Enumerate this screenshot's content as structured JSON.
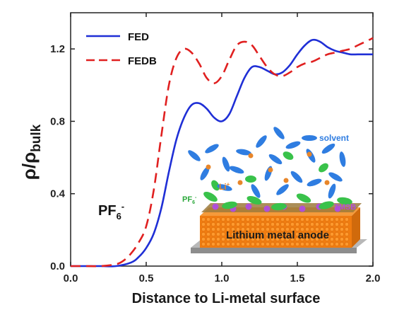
{
  "chart_data": {
    "type": "line",
    "title": "",
    "xlabel": "Distance to Li-metal surface",
    "ylabel_main": "ρ/ρ",
    "ylabel_sub": "bulk",
    "xlim": [
      0.0,
      2.0
    ],
    "ylim": [
      0.0,
      1.4
    ],
    "xticks": [
      "0.0",
      "0.5",
      "1.0",
      "1.5",
      "2.0"
    ],
    "yticks": [
      "0.0",
      "0.4",
      "0.8",
      "1.2"
    ],
    "xtick_values": [
      0.0,
      0.5,
      1.0,
      1.5,
      2.0
    ],
    "ytick_values": [
      0.0,
      0.4,
      0.8,
      1.2
    ],
    "legend_position": "top-left",
    "grid": false,
    "annotation_main": "PF",
    "annotation_sub": "6",
    "annotation_sup": "-",
    "series": [
      {
        "name": "FED",
        "color": "#1f2fd6",
        "style": "solid",
        "x": [
          0.0,
          0.1,
          0.2,
          0.3,
          0.4,
          0.45,
          0.5,
          0.55,
          0.6,
          0.65,
          0.7,
          0.75,
          0.8,
          0.85,
          0.9,
          0.95,
          1.0,
          1.05,
          1.1,
          1.15,
          1.2,
          1.25,
          1.3,
          1.35,
          1.4,
          1.45,
          1.5,
          1.55,
          1.6,
          1.65,
          1.7,
          1.75,
          1.8,
          1.85,
          1.9,
          1.95,
          2.0
        ],
        "y": [
          0.0,
          0.0,
          0.0,
          0.0,
          0.02,
          0.05,
          0.1,
          0.18,
          0.32,
          0.52,
          0.7,
          0.82,
          0.89,
          0.9,
          0.87,
          0.82,
          0.8,
          0.84,
          0.94,
          1.04,
          1.1,
          1.1,
          1.08,
          1.06,
          1.07,
          1.11,
          1.17,
          1.22,
          1.25,
          1.24,
          1.21,
          1.19,
          1.18,
          1.17,
          1.17,
          1.17,
          1.17
        ]
      },
      {
        "name": "FEDB",
        "color": "#e02020",
        "style": "dashed",
        "x": [
          0.0,
          0.1,
          0.2,
          0.3,
          0.35,
          0.4,
          0.45,
          0.5,
          0.55,
          0.6,
          0.65,
          0.7,
          0.75,
          0.8,
          0.85,
          0.9,
          0.95,
          1.0,
          1.05,
          1.1,
          1.15,
          1.2,
          1.25,
          1.3,
          1.35,
          1.4,
          1.45,
          1.5,
          1.55,
          1.6,
          1.65,
          1.7,
          1.75,
          1.8,
          1.85,
          1.9,
          1.95,
          2.0
        ],
        "y": [
          0.0,
          0.0,
          0.0,
          0.01,
          0.03,
          0.07,
          0.13,
          0.22,
          0.42,
          0.72,
          1.0,
          1.15,
          1.2,
          1.18,
          1.12,
          1.04,
          1.01,
          1.05,
          1.14,
          1.22,
          1.24,
          1.22,
          1.16,
          1.1,
          1.06,
          1.05,
          1.07,
          1.1,
          1.12,
          1.13,
          1.15,
          1.17,
          1.18,
          1.19,
          1.2,
          1.22,
          1.24,
          1.26
        ]
      }
    ]
  },
  "inset": {
    "anode_label": "Lithium metal anode",
    "solvent_label": "solvent",
    "li_label": "Li",
    "li_sup": "+",
    "pf6_label": "PF",
    "pf6_sub": "6",
    "pf6_sup": "-",
    "tmsb_label": "TMSB",
    "colors": {
      "solvent": "#2f7de1",
      "li": "#e8862a",
      "pf6": "#39c24a",
      "tmsb": "#b050d8",
      "anode": "#f07c10",
      "base": "#b8b8b8",
      "sei": "#7a5a2a"
    }
  }
}
